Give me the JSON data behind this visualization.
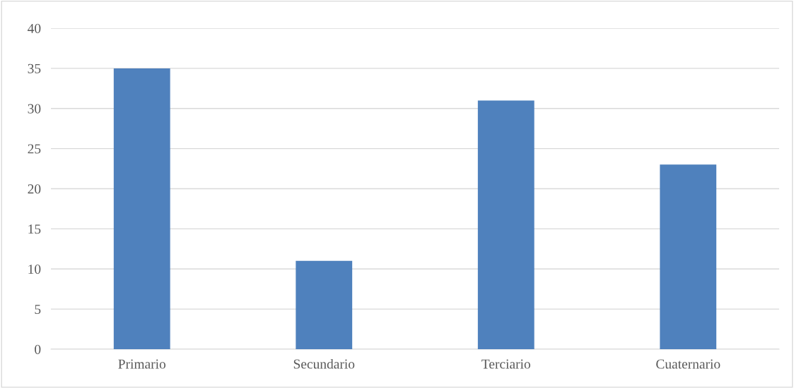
{
  "chart_data": {
    "type": "bar",
    "categories": [
      "Primario",
      "Secundario",
      "Terciario",
      "Cuaternario"
    ],
    "values": [
      35,
      11,
      31,
      23
    ],
    "color": "#4f81bd",
    "ylim": [
      0,
      40
    ],
    "yticks": [
      0,
      5,
      10,
      15,
      20,
      25,
      30,
      35,
      40
    ],
    "grid": "y",
    "legend": false
  }
}
